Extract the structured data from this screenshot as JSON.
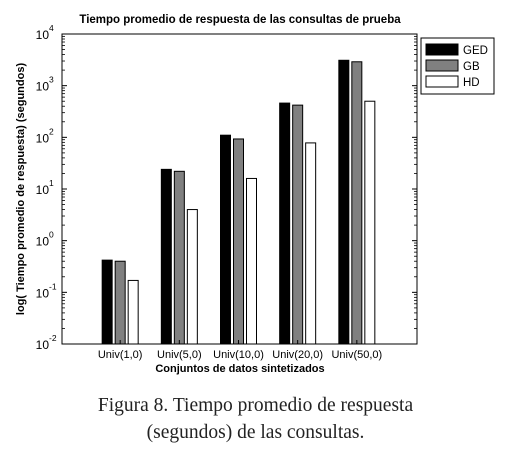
{
  "chart_data": {
    "type": "bar",
    "title": "Tiempo promedio de respuesta de las consultas de prueba",
    "xlabel": "Conjuntos de datos sintetizados",
    "ylabel": "log( Tiempo promedio de respuesta) (segundos)",
    "y_scale": "log",
    "ylim": [
      0.01,
      10000
    ],
    "y_ticks": [
      0.01,
      0.1,
      1,
      10,
      100,
      1000,
      10000
    ],
    "y_tick_labels": [
      {
        "base": "10",
        "exp": "-2"
      },
      {
        "base": "10",
        "exp": "-1"
      },
      {
        "base": "10",
        "exp": "0"
      },
      {
        "base": "10",
        "exp": "1"
      },
      {
        "base": "10",
        "exp": "2"
      },
      {
        "base": "10",
        "exp": "3"
      },
      {
        "base": "10",
        "exp": "4"
      }
    ],
    "categories": [
      "Univ(1,0)",
      "Univ(5,0)",
      "Univ(10,0)",
      "Univ(20,0)",
      "Univ(50,0)"
    ],
    "series": [
      {
        "name": "GED",
        "color": "#000000",
        "values": [
          0.42,
          24,
          110,
          460,
          3100
        ]
      },
      {
        "name": "GB",
        "color": "#808080",
        "values": [
          0.4,
          22,
          93,
          420,
          2900
        ]
      },
      {
        "name": "HD",
        "color": "#ffffff",
        "values": [
          0.17,
          4,
          16,
          78,
          500
        ]
      }
    ],
    "legend_position": "top-right",
    "grid": false
  },
  "caption": {
    "line1": "Figura 8. Tiempo promedio de respuesta",
    "line2": "(segundos) de las consultas."
  }
}
